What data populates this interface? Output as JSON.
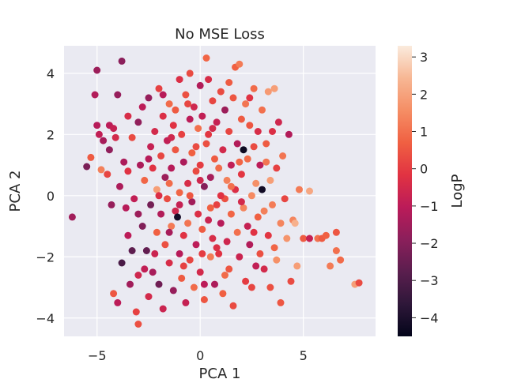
{
  "chart_data": {
    "type": "scatter",
    "title": "No MSE Loss",
    "xlabel": "PCA 1",
    "ylabel": "PCA 2",
    "xlim": [
      -6.6,
      8.5
    ],
    "ylim": [
      -4.6,
      4.9
    ],
    "xticks": [
      -5,
      0,
      5
    ],
    "xtick_labels": [
      "−5",
      "0",
      "5"
    ],
    "yticks": [
      -4,
      -2,
      0,
      2,
      4
    ],
    "ytick_labels": [
      "−4",
      "−2",
      "0",
      "2",
      "4"
    ],
    "grid": true,
    "background": "#eaeaf2",
    "colorbar": {
      "label": "LogP",
      "colormap": "rocket",
      "range": [
        -4.5,
        3.3
      ],
      "ticks": [
        -4,
        -3,
        -2,
        -1,
        0,
        1,
        2,
        3
      ],
      "tick_labels": [
        "−4",
        "−3",
        "−2",
        "−1",
        "0",
        "1",
        "2",
        "3"
      ],
      "colors": [
        "#03051a",
        "#2e1739",
        "#5a1e4e",
        "#8b1f5b",
        "#bb1b59",
        "#e13342",
        "#f06042",
        "#f58e65",
        "#f7b794",
        "#faebdd"
      ]
    },
    "series": [
      {
        "points": [
          [
            -6.2,
            -0.7,
            -1.5
          ],
          [
            -5.5,
            0.95,
            -2.2
          ],
          [
            -5.3,
            1.25,
            0.6
          ],
          [
            -5.1,
            3.3,
            -1.2
          ],
          [
            -5.0,
            4.1,
            -1.6
          ],
          [
            -5.0,
            2.3,
            -1.1
          ],
          [
            -4.9,
            2.0,
            -0.9
          ],
          [
            -4.8,
            0.85,
            1.3
          ],
          [
            -4.7,
            1.8,
            -1.4
          ],
          [
            -4.5,
            0.7,
            0.2
          ],
          [
            -4.4,
            2.3,
            -1.0
          ],
          [
            -4.4,
            1.5,
            -1.8
          ],
          [
            -4.2,
            -3.2,
            0.5
          ],
          [
            -4.2,
            2.2,
            -0.8
          ],
          [
            -4.1,
            1.9,
            -0.5
          ],
          [
            -4.0,
            3.3,
            -1.7
          ],
          [
            -4.0,
            -3.5,
            -1.0
          ],
          [
            -3.9,
            0.3,
            -1.3
          ],
          [
            -3.8,
            4.4,
            -1.9
          ],
          [
            -3.8,
            -2.2,
            -3.1
          ],
          [
            -3.7,
            1.1,
            -1.3
          ],
          [
            -3.6,
            -0.4,
            -1.1
          ],
          [
            -3.5,
            2.6,
            -0.4
          ],
          [
            -3.5,
            -1.3,
            -1.0
          ],
          [
            -3.4,
            -2.9,
            -1.5
          ],
          [
            -3.3,
            1.9,
            0.3
          ],
          [
            -3.2,
            -0.1,
            -0.9
          ],
          [
            -3.1,
            -3.8,
            0.1
          ],
          [
            -3.0,
            2.4,
            -1.8
          ],
          [
            -3.0,
            -2.6,
            -0.6
          ],
          [
            -3.0,
            -4.2,
            0.4
          ],
          [
            -2.9,
            1.0,
            -1.3
          ],
          [
            -2.8,
            -1.0,
            -2.1
          ],
          [
            -2.8,
            2.9,
            -1.0
          ],
          [
            -2.7,
            0.5,
            0.8
          ],
          [
            -2.6,
            -1.8,
            -2.6
          ],
          [
            -2.5,
            3.2,
            -1.7
          ],
          [
            -2.5,
            -3.3,
            -0.5
          ],
          [
            -2.4,
            1.6,
            -0.8
          ],
          [
            -2.4,
            -0.3,
            -2.3
          ],
          [
            -2.3,
            0.9,
            -0.2
          ],
          [
            -2.3,
            -2.5,
            -1.4
          ],
          [
            -2.2,
            2.1,
            -0.5
          ],
          [
            -2.1,
            -1.2,
            0.7
          ],
          [
            -2.1,
            0.2,
            1.9
          ],
          [
            -2.0,
            3.5,
            0.1
          ],
          [
            -2.0,
            -2.9,
            -2.4
          ],
          [
            -1.9,
            1.3,
            0.2
          ],
          [
            -1.9,
            -0.6,
            -1.2
          ],
          [
            -1.8,
            2.6,
            -0.3
          ],
          [
            -1.8,
            -3.7,
            -0.7
          ],
          [
            -1.7,
            0.6,
            -1.6
          ],
          [
            -1.7,
            -1.6,
            0.4
          ],
          [
            -1.6,
            1.8,
            -0.9
          ],
          [
            -1.6,
            -0.1,
            0.3
          ],
          [
            -1.5,
            3.0,
            0.9
          ],
          [
            -1.5,
            -2.2,
            -0.4
          ],
          [
            -1.4,
            0.9,
            -1.1
          ],
          [
            -1.4,
            -1.0,
            1.2
          ],
          [
            -1.3,
            2.3,
            -0.2
          ],
          [
            -1.3,
            -3.1,
            -1.7
          ],
          [
            -1.2,
            1.5,
            0.5
          ],
          [
            -1.2,
            -0.5,
            -0.6
          ],
          [
            -1.1,
            -0.7,
            -4.1
          ],
          [
            -1.0,
            3.8,
            -0.3
          ],
          [
            -1.0,
            0.1,
            0.8
          ],
          [
            -1.0,
            -1.9,
            -1.1
          ],
          [
            -0.9,
            2.0,
            0.1
          ],
          [
            -0.9,
            -2.7,
            0.6
          ],
          [
            -0.8,
            1.1,
            -1.3
          ],
          [
            -0.8,
            -1.3,
            -0.2
          ],
          [
            -0.7,
            3.3,
            0.4
          ],
          [
            -0.7,
            -3.5,
            -0.8
          ],
          [
            -0.6,
            0.4,
            -0.4
          ],
          [
            -0.6,
            -0.9,
            1.1
          ],
          [
            -0.5,
            2.5,
            -1.0
          ],
          [
            -0.5,
            -2.1,
            0.2
          ],
          [
            -0.5,
            4.0,
            0.3
          ],
          [
            -0.4,
            1.4,
            0.7
          ],
          [
            -0.4,
            -0.2,
            -1.5
          ],
          [
            -0.3,
            -3.0,
            0.9
          ],
          [
            -0.3,
            2.9,
            -0.6
          ],
          [
            -0.2,
            0.8,
            0.3
          ],
          [
            -0.2,
            -1.6,
            -1.0
          ],
          [
            -0.1,
            2.2,
            1.0
          ],
          [
            -0.1,
            -0.6,
            -0.3
          ],
          [
            0.0,
            3.6,
            -1.2
          ],
          [
            0.0,
            -2.5,
            -0.5
          ],
          [
            0.0,
            1.0,
            0.0
          ],
          [
            0.1,
            -1.1,
            0.6
          ],
          [
            0.1,
            2.6,
            -0.9
          ],
          [
            0.2,
            0.3,
            -2.0
          ],
          [
            0.2,
            -3.4,
            0.5
          ],
          [
            0.3,
            1.7,
            0.4
          ],
          [
            0.3,
            4.5,
            0.8
          ],
          [
            0.4,
            -0.8,
            -0.7
          ],
          [
            0.4,
            2.0,
            -0.1
          ],
          [
            0.5,
            -2.0,
            1.2
          ],
          [
            0.5,
            0.6,
            -1.4
          ],
          [
            0.6,
            3.1,
            0.2
          ],
          [
            0.6,
            -1.4,
            -0.4
          ],
          [
            0.7,
            1.2,
            0.6
          ],
          [
            0.7,
            -2.9,
            -1.3
          ],
          [
            0.8,
            -0.3,
            0.1
          ],
          [
            0.8,
            2.4,
            -0.8
          ],
          [
            0.9,
            0.9,
            0.9
          ],
          [
            0.9,
            -1.9,
            -0.2
          ],
          [
            1.0,
            3.4,
            0.3
          ],
          [
            1.0,
            -0.9,
            -1.1
          ],
          [
            1.1,
            1.5,
            -0.5
          ],
          [
            1.1,
            -3.2,
            0.7
          ],
          [
            1.2,
            -0.1,
            0.4
          ],
          [
            1.2,
            2.8,
            -1.6
          ],
          [
            1.3,
            0.5,
            1.3
          ],
          [
            1.3,
            -1.5,
            -0.6
          ],
          [
            1.4,
            2.1,
            0.2
          ],
          [
            1.4,
            -2.4,
            0.5
          ],
          [
            1.5,
            1.0,
            -0.9
          ],
          [
            1.5,
            -0.6,
            0.8
          ],
          [
            1.6,
            3.2,
            0.5
          ],
          [
            1.6,
            -3.6,
            0.3
          ],
          [
            1.7,
            4.2,
            0.7
          ],
          [
            1.7,
            0.2,
            -0.3
          ],
          [
            1.8,
            -1.2,
            1.0
          ],
          [
            1.8,
            1.7,
            -1.2
          ],
          [
            1.9,
            4.3,
            1.2
          ],
          [
            1.9,
            -2.0,
            -0.7
          ],
          [
            2.0,
            2.5,
            0.6
          ],
          [
            2.0,
            0.7,
            -0.1
          ],
          [
            2.1,
            -0.4,
            1.4
          ],
          [
            2.1,
            1.5,
            -4.3
          ],
          [
            2.2,
            -2.8,
            0.0
          ],
          [
            2.2,
            3.0,
            1.1
          ],
          [
            2.3,
            1.2,
            0.9
          ],
          [
            2.3,
            -1.0,
            -0.8
          ],
          [
            2.4,
            2.3,
            0.5
          ],
          [
            2.4,
            -1.6,
            -1.2
          ],
          [
            2.5,
            0.0,
            1.5
          ],
          [
            2.5,
            -3.0,
            0.2
          ],
          [
            2.6,
            3.5,
            0.9
          ],
          [
            2.6,
            1.6,
            0.3
          ],
          [
            2.7,
            -2.3,
            -0.9
          ],
          [
            2.7,
            0.4,
            1.6
          ],
          [
            2.8,
            2.1,
            -0.4
          ],
          [
            2.8,
            -0.7,
            0.7
          ],
          [
            2.9,
            -1.9,
            0.4
          ],
          [
            2.9,
            1.0,
            -1.0
          ],
          [
            3.0,
            2.8,
            1.0
          ],
          [
            3.0,
            0.2,
            -4.2
          ],
          [
            3.1,
            -0.5,
            1.3
          ],
          [
            3.1,
            -2.4,
            -0.5
          ],
          [
            3.2,
            1.7,
            0.6
          ],
          [
            3.3,
            3.4,
            1.8
          ],
          [
            3.3,
            -1.3,
            -0.1
          ],
          [
            3.4,
            0.5,
            1.9
          ],
          [
            3.4,
            -3.0,
            0.4
          ],
          [
            3.5,
            2.1,
            -0.3
          ],
          [
            3.5,
            -0.3,
            1.2
          ],
          [
            3.6,
            3.5,
            1.9
          ],
          [
            3.6,
            -1.7,
            0.8
          ],
          [
            3.7,
            0.9,
            0.1
          ],
          [
            3.7,
            -2.1,
            1.6
          ],
          [
            3.8,
            2.4,
            -0.6
          ],
          [
            3.9,
            -0.9,
            1.4
          ],
          [
            3.9,
            -3.5,
            0.5
          ],
          [
            4.0,
            1.3,
            1.1
          ],
          [
            4.1,
            -0.1,
            0.2
          ],
          [
            4.2,
            -1.4,
            1.7
          ],
          [
            4.3,
            2.0,
            -1.2
          ],
          [
            4.4,
            -2.8,
            0.3
          ],
          [
            4.5,
            -0.8,
            1.4
          ],
          [
            4.6,
            -0.9,
            2.3
          ],
          [
            4.7,
            -2.3,
            1.9
          ],
          [
            4.8,
            0.2,
            1.2
          ],
          [
            5.0,
            -1.4,
            0.6
          ],
          [
            5.3,
            -1.4,
            -0.8
          ],
          [
            5.3,
            0.15,
            2.1
          ],
          [
            5.7,
            -1.4,
            1.0
          ],
          [
            5.9,
            -1.4,
            0.6
          ],
          [
            6.1,
            -1.3,
            0.7
          ],
          [
            6.3,
            -2.3,
            1.2
          ],
          [
            6.6,
            -1.8,
            1.0
          ],
          [
            6.6,
            -1.2,
            0.5
          ],
          [
            6.8,
            -2.1,
            0.9
          ],
          [
            7.5,
            -2.9,
            1.9
          ],
          [
            7.7,
            -2.85,
            0.3
          ],
          [
            -2.0,
            0.0,
            -0.3
          ],
          [
            -1.5,
            0.4,
            0.9
          ],
          [
            -1.0,
            -0.3,
            -0.8
          ],
          [
            -0.5,
            0.0,
            0.5
          ],
          [
            0.0,
            0.5,
            -0.6
          ],
          [
            0.5,
            -0.4,
            0.7
          ],
          [
            1.0,
            0.0,
            -0.2
          ],
          [
            1.5,
            0.3,
            1.0
          ],
          [
            2.0,
            -0.2,
            -0.5
          ],
          [
            -2.5,
            1.2,
            -1.1
          ],
          [
            -1.5,
            -1.2,
            -1.4
          ],
          [
            -0.2,
            1.6,
            0.3
          ],
          [
            0.8,
            -1.7,
            -0.3
          ],
          [
            1.9,
            1.1,
            0.8
          ],
          [
            -3.5,
            0.8,
            -0.2
          ],
          [
            -3.0,
            -0.6,
            -1.6
          ],
          [
            -2.2,
            -1.9,
            -0.7
          ],
          [
            -1.2,
            2.8,
            0.6
          ],
          [
            0.2,
            -2.9,
            -1.0
          ],
          [
            1.2,
            -2.6,
            0.9
          ],
          [
            2.6,
            -1.2,
            -0.2
          ],
          [
            3.2,
            1.1,
            1.1
          ],
          [
            -0.8,
            -2.3,
            0.1
          ],
          [
            0.6,
            2.2,
            -0.5
          ],
          [
            -4.3,
            -0.3,
            -1.7
          ],
          [
            -3.3,
            -1.8,
            -2.7
          ],
          [
            -2.7,
            -2.4,
            -0.9
          ],
          [
            -1.8,
            3.3,
            -1.1
          ],
          [
            -0.6,
            3.0,
            0.2
          ],
          [
            0.4,
            3.8,
            -0.4
          ],
          [
            1.4,
            3.7,
            0.6
          ],
          [
            2.4,
            3.2,
            -0.2
          ],
          [
            -1.4,
            1.9,
            -0.6
          ],
          [
            0.1,
            -1.9,
            0.0
          ]
        ]
      }
    ]
  }
}
